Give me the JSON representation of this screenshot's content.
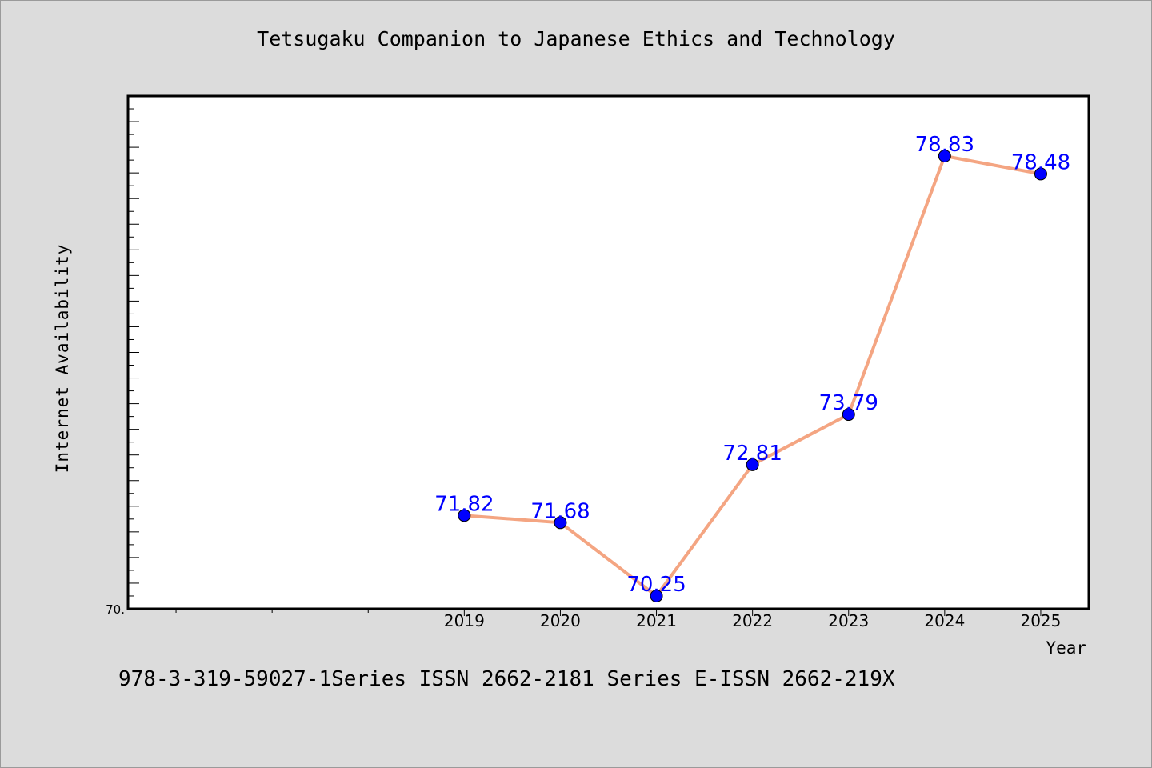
{
  "chart_data": {
    "type": "line",
    "title": "Tetsugaku Companion to Japanese Ethics and Technology",
    "xlabel": "Year",
    "ylabel": "Internet Availability",
    "categories": [
      "2019",
      "2020",
      "2021",
      "2022",
      "2023",
      "2024",
      "2025"
    ],
    "series": [
      {
        "values": [
          71.82,
          71.68,
          70.25,
          72.81,
          73.79,
          78.83,
          78.48
        ],
        "labels": [
          "71.82",
          "71.68",
          "70.25",
          "72.81",
          "73.79",
          "78.83",
          "78.48"
        ]
      }
    ],
    "y_tick_labels": [
      "70."
    ],
    "ylim": [
      70,
      80
    ],
    "xlim": [
      2015.5,
      2025.5
    ],
    "grid": false,
    "line_color": "#f4a582",
    "marker_color": "#0000ff",
    "label_color": "#0000ff"
  },
  "footer": {
    "text": "978-3-319-59027-1Series ISSN 2662-2181 Series E-ISSN 2662-219X"
  }
}
